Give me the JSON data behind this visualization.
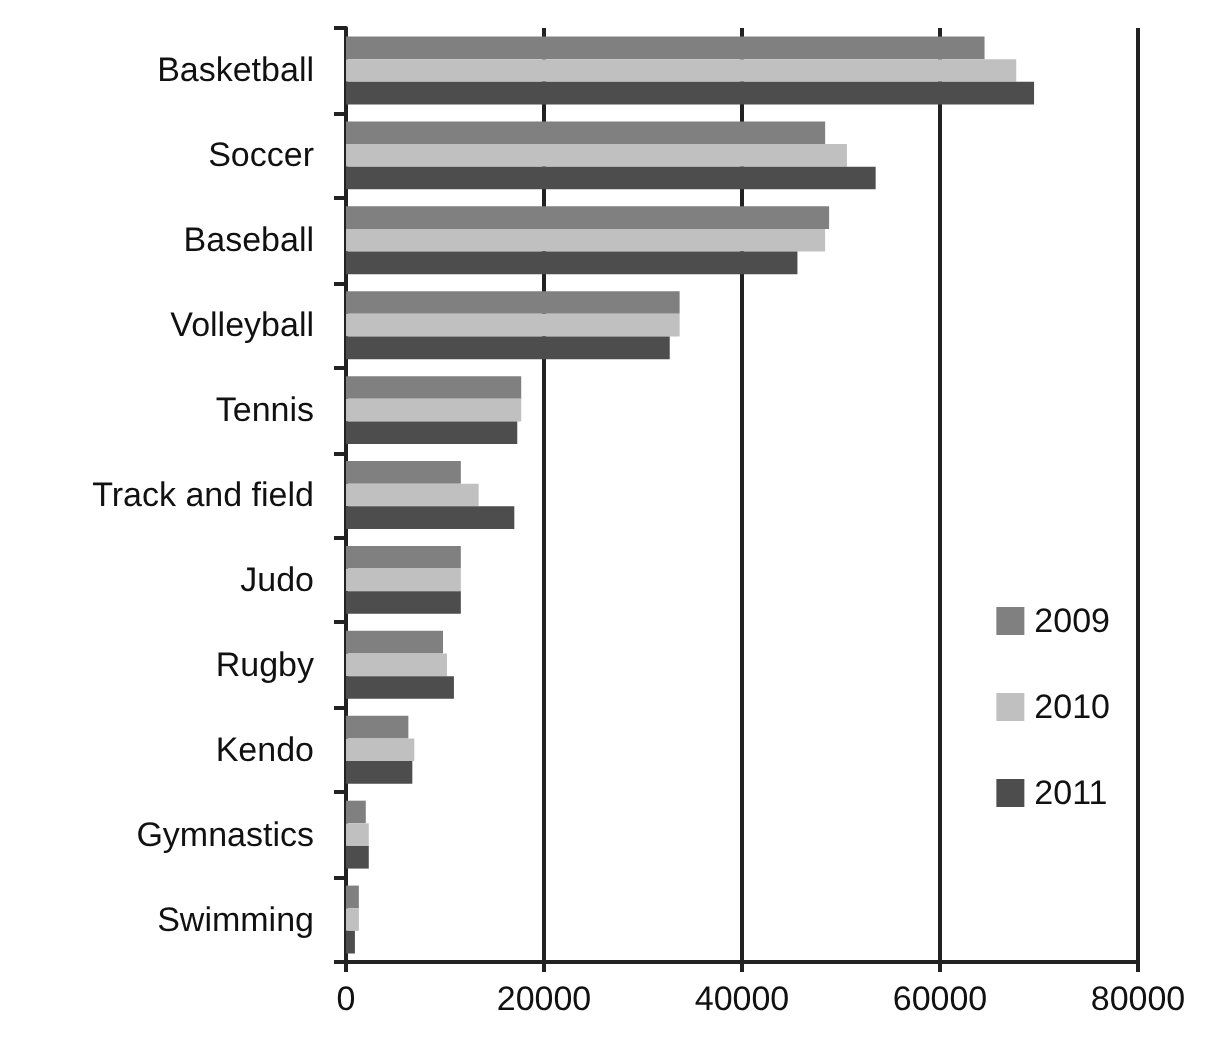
{
  "chart_data": {
    "type": "bar",
    "orientation": "horizontal",
    "categories": [
      "Basketball",
      "Soccer",
      "Baseball",
      "Volleyball",
      "Tennis",
      "Track and field",
      "Judo",
      "Rugby",
      "Kendo",
      "Gymnastics",
      "Swimming"
    ],
    "series": [
      {
        "name": "2009",
        "color": "#808080",
        "values": [
          64500,
          48400,
          48800,
          33700,
          17700,
          11600,
          11600,
          9800,
          6300,
          2000,
          1300
        ]
      },
      {
        "name": "2010",
        "color": "#c0c0c0",
        "values": [
          67700,
          50600,
          48400,
          33700,
          17700,
          13400,
          11600,
          10200,
          6900,
          2300,
          1300
        ]
      },
      {
        "name": "2011",
        "color": "#4d4d4d",
        "values": [
          69500,
          53500,
          45600,
          32700,
          17300,
          17000,
          11600,
          10900,
          6700,
          2300,
          900
        ]
      }
    ],
    "xlim": [
      0,
      80000
    ],
    "xticks": [
      0,
      20000,
      40000,
      60000,
      80000
    ],
    "grid": "x",
    "legend": "right"
  }
}
